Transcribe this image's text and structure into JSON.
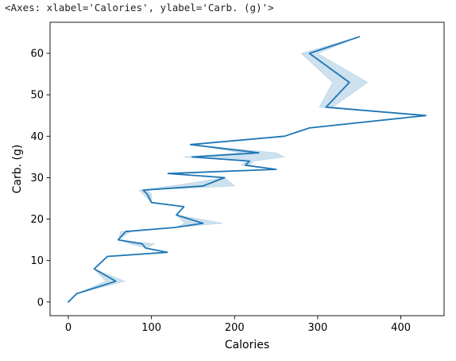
{
  "repr_text": "<Axes: xlabel='Calories', ylabel='Carb. (g)'>",
  "chart_data": {
    "type": "line",
    "title": "",
    "xlabel": "Calories",
    "ylabel": "Carb. (g)",
    "xlim": [
      -22,
      452
    ],
    "ylim": [
      -3.3,
      67.5
    ],
    "xticks": [
      0,
      100,
      200,
      300,
      400
    ],
    "yticks": [
      0,
      10,
      20,
      30,
      40,
      50,
      60
    ],
    "grid": false,
    "line_color": "#1f77b4",
    "band_color": "#1f77b4",
    "series": [
      {
        "points": [
          [
            0,
            0
          ],
          [
            10,
            2
          ],
          [
            57,
            5
          ],
          [
            31,
            8
          ],
          [
            47,
            11
          ],
          [
            119,
            12
          ],
          [
            93,
            13
          ],
          [
            89,
            14
          ],
          [
            60,
            15
          ],
          [
            69,
            17
          ],
          [
            129,
            18
          ],
          [
            162,
            19
          ],
          [
            130,
            21
          ],
          [
            139,
            23
          ],
          [
            100,
            24
          ],
          [
            95,
            26
          ],
          [
            90,
            27
          ],
          [
            162,
            28
          ],
          [
            188,
            30
          ],
          [
            120,
            31
          ],
          [
            250,
            32
          ],
          [
            213,
            33
          ],
          [
            218,
            34
          ],
          [
            149,
            35
          ],
          [
            229,
            36
          ],
          [
            147,
            38
          ],
          [
            260,
            40
          ],
          [
            290,
            42
          ],
          [
            430,
            45
          ],
          [
            310,
            47
          ],
          [
            338,
            53
          ],
          [
            290,
            60
          ],
          [
            350,
            64
          ]
        ],
        "ci_band": [
          [
            0,
            0,
            0
          ],
          [
            10,
            10,
            2
          ],
          [
            45,
            68,
            5
          ],
          [
            31,
            31,
            8
          ],
          [
            47,
            47,
            11
          ],
          [
            119,
            119,
            12
          ],
          [
            93,
            93,
            13
          ],
          [
            74,
            104,
            14
          ],
          [
            60,
            60,
            15
          ],
          [
            63,
            75,
            17
          ],
          [
            129,
            129,
            18
          ],
          [
            140,
            186,
            19
          ],
          [
            130,
            130,
            21
          ],
          [
            139,
            139,
            23
          ],
          [
            100,
            100,
            24
          ],
          [
            90,
            100,
            26
          ],
          [
            85,
            95,
            27
          ],
          [
            124,
            200,
            28
          ],
          [
            188,
            188,
            30
          ],
          [
            120,
            120,
            31
          ],
          [
            250,
            250,
            32
          ],
          [
            208,
            218,
            33
          ],
          [
            213,
            223,
            34
          ],
          [
            138,
            260,
            35
          ],
          [
            208,
            250,
            36
          ],
          [
            147,
            147,
            38
          ],
          [
            260,
            260,
            40
          ],
          [
            290,
            290,
            42
          ],
          [
            430,
            430,
            45
          ],
          [
            302,
            318,
            47
          ],
          [
            318,
            360,
            53
          ],
          [
            280,
            300,
            60
          ],
          [
            350,
            350,
            64
          ]
        ]
      }
    ]
  }
}
